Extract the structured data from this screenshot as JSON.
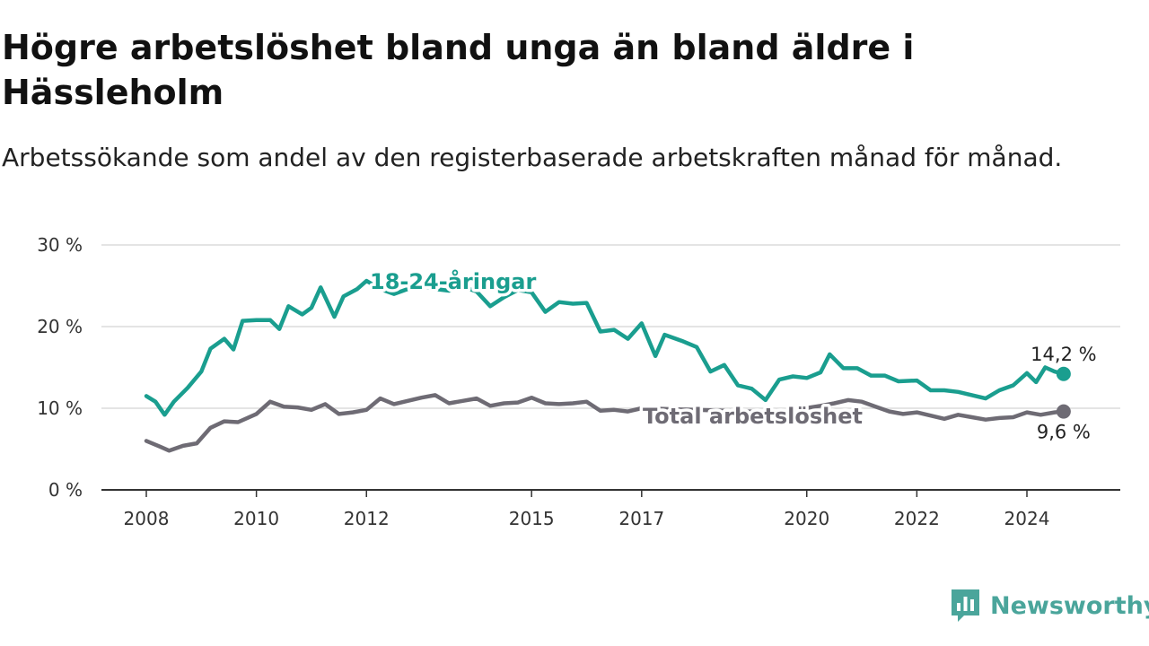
{
  "title": "Högre arbetslöshet bland unga än bland äldre i Hässleholm",
  "subtitle": "Arbetssökande som andel av den registerbaserade arbetskraften månad för månad.",
  "brand": {
    "name": "Newsworthy",
    "icon": "newsworthy-logo-icon",
    "color": "#4aa59b"
  },
  "chart_data": {
    "type": "line",
    "title": "Högre arbetslöshet bland unga än bland äldre i Hässleholm",
    "subtitle": "Arbetssökande som andel av den registerbaserade arbetskraften månad för månad.",
    "xlabel": "",
    "ylabel": "",
    "xlim": [
      "2008-01",
      "2024-12"
    ],
    "ylim": [
      0,
      30
    ],
    "y_ticks": [
      0,
      10,
      20,
      30
    ],
    "y_tick_labels": [
      "0 %",
      "10 %",
      "20 %",
      "30 %"
    ],
    "x_tick_labels": [
      "2008",
      "2010",
      "2012",
      "2015",
      "2017",
      "2020",
      "2022",
      "2024"
    ],
    "x_ticks": [
      "2008-01",
      "2010-01",
      "2012-01",
      "2015-01",
      "2017-01",
      "2020-01",
      "2022-01",
      "2024-01"
    ],
    "grid": "horizontal",
    "series": [
      {
        "name": "18-24-åringar",
        "color": "#1a9e8f",
        "end_label": "14,2 %",
        "points": [
          [
            "2008-01",
            11.5
          ],
          [
            "2008-03",
            10.8
          ],
          [
            "2008-05",
            9.2
          ],
          [
            "2008-07",
            10.8
          ],
          [
            "2008-10",
            12.5
          ],
          [
            "2009-01",
            14.5
          ],
          [
            "2009-03",
            17.3
          ],
          [
            "2009-06",
            18.5
          ],
          [
            "2009-08",
            17.2
          ],
          [
            "2009-10",
            20.7
          ],
          [
            "2010-01",
            20.8
          ],
          [
            "2010-04",
            20.8
          ],
          [
            "2010-06",
            19.7
          ],
          [
            "2010-08",
            22.5
          ],
          [
            "2010-11",
            21.5
          ],
          [
            "2011-01",
            22.3
          ],
          [
            "2011-03",
            24.8
          ],
          [
            "2011-06",
            21.2
          ],
          [
            "2011-08",
            23.7
          ],
          [
            "2011-11",
            24.6
          ],
          [
            "2012-01",
            25.6
          ],
          [
            "2012-04",
            24.6
          ],
          [
            "2012-07",
            24.0
          ],
          [
            "2012-10",
            24.6
          ],
          [
            "2013-01",
            25.0
          ],
          [
            "2013-04",
            24.6
          ],
          [
            "2013-07",
            24.4
          ],
          [
            "2013-10",
            24.9
          ],
          [
            "2014-01",
            24.3
          ],
          [
            "2014-04",
            22.5
          ],
          [
            "2014-07",
            23.6
          ],
          [
            "2014-10",
            24.5
          ],
          [
            "2015-01",
            24.2
          ],
          [
            "2015-04",
            21.8
          ],
          [
            "2015-07",
            23.0
          ],
          [
            "2015-10",
            22.8
          ],
          [
            "2016-01",
            22.9
          ],
          [
            "2016-04",
            19.4
          ],
          [
            "2016-07",
            19.6
          ],
          [
            "2016-10",
            18.5
          ],
          [
            "2017-01",
            20.4
          ],
          [
            "2017-04",
            16.4
          ],
          [
            "2017-06",
            19.0
          ],
          [
            "2017-10",
            18.2
          ],
          [
            "2018-01",
            17.5
          ],
          [
            "2018-04",
            14.5
          ],
          [
            "2018-07",
            15.3
          ],
          [
            "2018-10",
            12.8
          ],
          [
            "2019-01",
            12.4
          ],
          [
            "2019-04",
            11.0
          ],
          [
            "2019-07",
            13.5
          ],
          [
            "2019-10",
            13.9
          ],
          [
            "2020-01",
            13.7
          ],
          [
            "2020-04",
            14.4
          ],
          [
            "2020-06",
            16.6
          ],
          [
            "2020-09",
            14.9
          ],
          [
            "2020-12",
            14.9
          ],
          [
            "2021-03",
            14.0
          ],
          [
            "2021-06",
            14.0
          ],
          [
            "2021-09",
            13.3
          ],
          [
            "2022-01",
            13.4
          ],
          [
            "2022-04",
            12.2
          ],
          [
            "2022-07",
            12.2
          ],
          [
            "2022-10",
            12.0
          ],
          [
            "2023-01",
            11.6
          ],
          [
            "2023-04",
            11.2
          ],
          [
            "2023-07",
            12.2
          ],
          [
            "2023-10",
            12.8
          ],
          [
            "2024-01",
            14.3
          ],
          [
            "2024-03",
            13.2
          ],
          [
            "2024-05",
            15.0
          ],
          [
            "2024-07",
            14.5
          ],
          [
            "2024-09",
            14.2
          ]
        ]
      },
      {
        "name": "Total arbetslöshet",
        "color": "#6e6b74",
        "end_label": "9,6 %",
        "points": [
          [
            "2008-01",
            6.0
          ],
          [
            "2008-04",
            5.3
          ],
          [
            "2008-06",
            4.8
          ],
          [
            "2008-09",
            5.4
          ],
          [
            "2008-12",
            5.7
          ],
          [
            "2009-03",
            7.6
          ],
          [
            "2009-06",
            8.4
          ],
          [
            "2009-09",
            8.3
          ],
          [
            "2010-01",
            9.3
          ],
          [
            "2010-04",
            10.8
          ],
          [
            "2010-07",
            10.2
          ],
          [
            "2010-10",
            10.1
          ],
          [
            "2011-01",
            9.8
          ],
          [
            "2011-04",
            10.5
          ],
          [
            "2011-07",
            9.3
          ],
          [
            "2011-10",
            9.5
          ],
          [
            "2012-01",
            9.8
          ],
          [
            "2012-04",
            11.2
          ],
          [
            "2012-07",
            10.5
          ],
          [
            "2012-10",
            10.9
          ],
          [
            "2013-01",
            11.3
          ],
          [
            "2013-04",
            11.6
          ],
          [
            "2013-07",
            10.6
          ],
          [
            "2013-10",
            10.9
          ],
          [
            "2014-01",
            11.2
          ],
          [
            "2014-04",
            10.3
          ],
          [
            "2014-07",
            10.6
          ],
          [
            "2014-10",
            10.7
          ],
          [
            "2015-01",
            11.3
          ],
          [
            "2015-04",
            10.6
          ],
          [
            "2015-07",
            10.5
          ],
          [
            "2015-10",
            10.6
          ],
          [
            "2016-01",
            10.8
          ],
          [
            "2016-04",
            9.7
          ],
          [
            "2016-07",
            9.8
          ],
          [
            "2016-10",
            9.6
          ],
          [
            "2017-01",
            10.0
          ],
          [
            "2019-07",
            9.5
          ],
          [
            "2020-04",
            10.3
          ],
          [
            "2020-07",
            10.6
          ],
          [
            "2020-10",
            11.0
          ],
          [
            "2021-01",
            10.8
          ],
          [
            "2021-04",
            10.2
          ],
          [
            "2021-07",
            9.6
          ],
          [
            "2021-10",
            9.3
          ],
          [
            "2022-01",
            9.5
          ],
          [
            "2022-04",
            9.1
          ],
          [
            "2022-07",
            8.7
          ],
          [
            "2022-10",
            9.2
          ],
          [
            "2023-01",
            8.9
          ],
          [
            "2023-04",
            8.6
          ],
          [
            "2023-07",
            8.8
          ],
          [
            "2023-10",
            8.9
          ],
          [
            "2024-01",
            9.5
          ],
          [
            "2024-04",
            9.2
          ],
          [
            "2024-07",
            9.5
          ],
          [
            "2024-09",
            9.6
          ]
        ]
      }
    ],
    "series_labels_placement": "inline",
    "legend": "none"
  }
}
